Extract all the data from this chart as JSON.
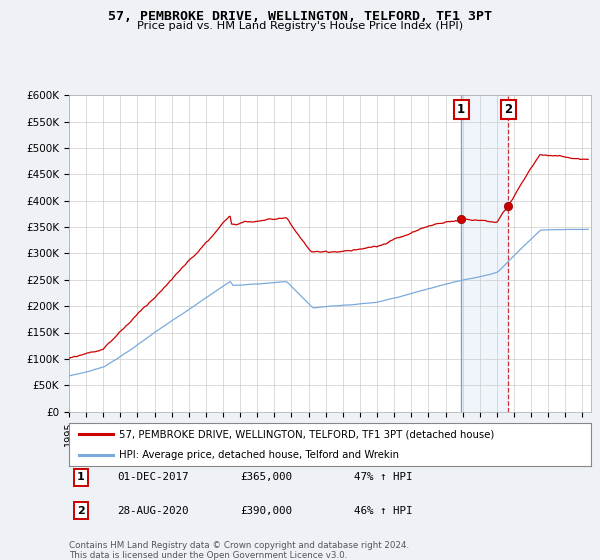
{
  "title": "57, PEMBROKE DRIVE, WELLINGTON, TELFORD, TF1 3PT",
  "subtitle": "Price paid vs. HM Land Registry's House Price Index (HPI)",
  "legend_line1": "57, PEMBROKE DRIVE, WELLINGTON, TELFORD, TF1 3PT (detached house)",
  "legend_line2": "HPI: Average price, detached house, Telford and Wrekin",
  "annotation1_label": "1",
  "annotation1_date": "01-DEC-2017",
  "annotation1_price": "£365,000",
  "annotation1_hpi": "47% ↑ HPI",
  "annotation2_label": "2",
  "annotation2_date": "28-AUG-2020",
  "annotation2_price": "£390,000",
  "annotation2_hpi": "46% ↑ HPI",
  "footnote": "Contains HM Land Registry data © Crown copyright and database right 2024.\nThis data is licensed under the Open Government Licence v3.0.",
  "hpi_color": "#7aaadd",
  "price_color": "#cc0000",
  "sale1_x": 2017.917,
  "sale1_y": 365000,
  "sale2_x": 2020.667,
  "sale2_y": 390000,
  "ylim": [
    0,
    600000
  ],
  "yticks": [
    0,
    50000,
    100000,
    150000,
    200000,
    250000,
    300000,
    350000,
    400000,
    450000,
    500000,
    550000,
    600000
  ],
  "xlim_start": 1995,
  "xlim_end": 2025.5,
  "background_color": "#eef2f7",
  "plot_bg_color": "#ffffff"
}
